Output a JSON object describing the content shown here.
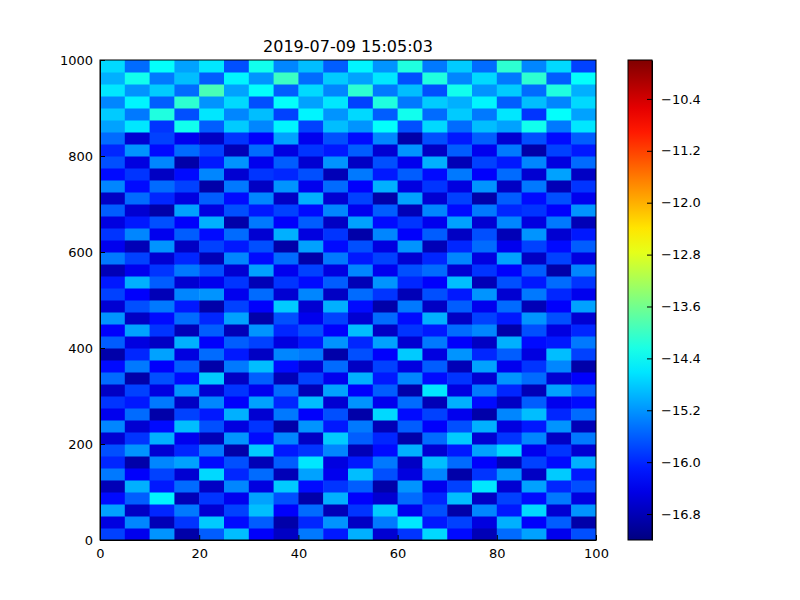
{
  "chart_data": {
    "type": "heatmap",
    "title": "2019-07-09 15:05:03",
    "xlim": [
      0,
      100
    ],
    "xticks": [
      0,
      20,
      40,
      60,
      80,
      100
    ],
    "ylim": [
      0,
      1000
    ],
    "yticks": [
      0,
      200,
      400,
      600,
      800,
      1000
    ],
    "colorbar": {
      "range": [
        -17.2,
        -9.8
      ],
      "ticks": [
        {
          "value": -16.8,
          "label": "−16.8"
        },
        {
          "value": -16.0,
          "label": "−16.0"
        },
        {
          "value": -15.2,
          "label": "−15.2"
        },
        {
          "value": -14.4,
          "label": "−14.4"
        },
        {
          "value": -13.6,
          "label": "−13.6"
        },
        {
          "value": -12.8,
          "label": "−12.8"
        },
        {
          "value": -12.0,
          "label": "−12.0"
        },
        {
          "value": -11.2,
          "label": "−11.2"
        },
        {
          "value": -10.4,
          "label": "−10.4"
        }
      ]
    },
    "cells": [
      [
        -15.8,
        -16.4,
        -15.2,
        -16.9,
        -15.6,
        -14.9,
        -16.3,
        -16.7,
        -15.4,
        -16.1,
        -15.0,
        -16.6,
        -15.9,
        -14.7,
        -16.2,
        -16.8,
        -15.5,
        -15.1,
        -16.4,
        -15.7
      ],
      [
        -16.5,
        -15.3,
        -16.8,
        -15.9,
        -14.8,
        -16.2,
        -15.6,
        -16.9,
        -16.0,
        -15.2,
        -16.7,
        -15.4,
        -14.6,
        -16.1,
        -15.8,
        -16.5,
        -15.0,
        -16.3,
        -15.6,
        -16.9
      ],
      [
        -15.1,
        -16.7,
        -16.0,
        -15.4,
        -16.6,
        -15.8,
        -14.9,
        -16.3,
        -15.5,
        -16.8,
        -15.9,
        -14.8,
        -16.4,
        -15.7,
        -16.9,
        -15.3,
        -16.1,
        -14.7,
        -16.6,
        -15.2
      ],
      [
        -16.2,
        -15.6,
        -14.5,
        -16.8,
        -15.9,
        -16.4,
        -15.1,
        -15.7,
        -16.9,
        -15.0,
        -16.3,
        -16.6,
        -15.5,
        -16.0,
        -14.9,
        -16.7,
        -15.8,
        -16.2,
        -15.4,
        -16.5
      ],
      [
        -16.8,
        -15.0,
        -16.1,
        -15.5,
        -16.7,
        -15.3,
        -16.5,
        -14.8,
        -16.2,
        -15.9,
        -15.6,
        -16.9,
        -15.2,
        -16.4,
        -15.8,
        -14.6,
        -16.6,
        -15.1,
        -16.0,
        -15.7
      ],
      [
        -15.4,
        -16.3,
        -15.8,
        -16.6,
        -14.7,
        -16.0,
        -15.5,
        -16.8,
        -15.1,
        -16.4,
        -14.9,
        -15.7,
        -16.5,
        -15.3,
        -16.9,
        -15.9,
        -15.2,
        -16.7,
        -14.8,
        -16.1
      ],
      [
        -16.0,
        -16.9,
        -15.3,
        -15.1,
        -16.2,
        -15.7,
        -16.8,
        -15.6,
        -14.6,
        -16.5,
        -16.1,
        -15.4,
        -16.7,
        -14.9,
        -15.5,
        -16.3,
        -16.8,
        -15.8,
        -16.2,
        -15.0
      ],
      [
        -15.7,
        -15.2,
        -16.6,
        -16.0,
        -15.4,
        -16.9,
        -14.8,
        -16.1,
        -15.9,
        -15.3,
        -16.8,
        -16.2,
        -15.0,
        -16.6,
        -16.1,
        -15.1,
        -14.7,
        -16.4,
        -15.9,
        -16.6
      ],
      [
        -16.6,
        -15.9,
        -15.0,
        -16.4,
        -16.8,
        -15.2,
        -16.2,
        -15.3,
        -16.7,
        -14.8,
        -15.6,
        -16.0,
        -16.9,
        -15.5,
        -14.8,
        -16.6,
        -15.9,
        -15.3,
        -16.7,
        -15.4
      ],
      [
        -15.3,
        -16.6,
        -16.2,
        -14.9,
        -15.7,
        -16.5,
        -15.9,
        -16.9,
        -15.2,
        -16.1,
        -15.4,
        -16.8,
        -15.6,
        -16.3,
        -15.7,
        -15.0,
        -16.5,
        -16.1,
        -15.2,
        -16.8
      ],
      [
        -16.4,
        -15.5,
        -16.9,
        -15.8,
        -16.1,
        -15.0,
        -16.6,
        -15.4,
        -16.3,
        -15.7,
        -16.9,
        -14.7,
        -16.2,
        -15.8,
        -16.4,
        -16.9,
        -15.3,
        -14.9,
        -16.0,
        -15.5
      ],
      [
        -15.9,
        -16.1,
        -15.4,
        -16.7,
        -15.3,
        -16.3,
        -15.1,
        -16.0,
        -14.9,
        -16.6,
        -15.2,
        -16.4,
        -15.5,
        -16.8,
        -15.0,
        -16.2,
        -16.7,
        -15.6,
        -16.4,
        -16.2
      ],
      [
        -16.7,
        -15.8,
        -16.5,
        -15.2,
        -16.6,
        -15.9,
        -16.4,
        -15.5,
        -16.8,
        -15.1,
        -16.3,
        -15.6,
        -16.9,
        -14.6,
        -16.5,
        -15.4,
        -16.0,
        -16.8,
        -15.1,
        -15.6
      ],
      [
        -15.5,
        -16.9,
        -15.7,
        -16.2,
        -14.8,
        -16.7,
        -15.6,
        -16.8,
        -15.8,
        -16.4,
        -15.0,
        -16.1,
        -15.3,
        -16.2,
        -15.9,
        -16.6,
        -15.2,
        -15.5,
        -16.6,
        -16.3
      ],
      [
        -16.2,
        -15.4,
        -16.3,
        -15.6,
        -16.9,
        -15.4,
        -14.9,
        -16.2,
        -16.6,
        -15.5,
        -16.7,
        -15.8,
        -16.5,
        -15.6,
        -16.8,
        -15.1,
        -16.4,
        -15.9,
        -15.3,
        -16.9
      ],
      [
        -16.9,
        -16.0,
        -15.1,
        -16.5,
        -15.5,
        -16.1,
        -16.7,
        -15.3,
        -15.4,
        -16.9,
        -15.7,
        -16.3,
        -14.8,
        -16.5,
        -15.2,
        -16.0,
        -15.6,
        -16.5,
        -14.9,
        -15.8
      ],
      [
        -15.6,
        -16.5,
        -16.7,
        -15.0,
        -16.3,
        -15.6,
        -15.8,
        -16.5,
        -16.1,
        -15.2,
        -16.0,
        -15.1,
        -16.6,
        -15.4,
        -16.3,
        -16.7,
        -15.0,
        -16.2,
        -16.1,
        -15.4
      ],
      [
        -16.3,
        -15.1,
        -15.9,
        -16.8,
        -15.6,
        -16.8,
        -15.2,
        -16.0,
        -15.7,
        -16.3,
        -14.9,
        -16.7,
        -15.9,
        -16.1,
        -15.5,
        -15.3,
        -16.9,
        -15.7,
        -16.5,
        -16.0
      ],
      [
        -15.2,
        -16.7,
        -16.2,
        -15.5,
        -16.0,
        -15.1,
        -16.9,
        -15.7,
        -16.4,
        -15.8,
        -16.6,
        -15.5,
        -16.2,
        -15.0,
        -16.7,
        -15.8,
        -16.1,
        -15.2,
        -15.7,
        -16.6
      ],
      [
        -16.6,
        -15.7,
        -15.4,
        -16.1,
        -16.9,
        -15.8,
        -16.3,
        -14.8,
        -16.6,
        -15.0,
        -16.2,
        -16.9,
        -15.4,
        -16.7,
        -15.6,
        -16.4,
        -15.5,
        -16.8,
        -16.3,
        -15.1
      ],
      [
        -15.8,
        -16.3,
        -16.8,
        -15.3,
        -15.2,
        -16.4,
        -15.5,
        -16.6,
        -15.3,
        -16.7,
        -15.5,
        -15.9,
        -16.8,
        -15.7,
        -16.1,
        -15.2,
        -16.6,
        -15.4,
        -16.0,
        -16.4
      ],
      [
        -16.1,
        -15.0,
        -15.6,
        -16.6,
        -16.4,
        -15.9,
        -16.8,
        -15.9,
        -16.2,
        -15.6,
        -16.8,
        -15.2,
        -16.0,
        -16.3,
        -14.9,
        -16.8,
        -15.7,
        -16.1,
        -15.5,
        -15.9
      ],
      [
        -16.8,
        -16.4,
        -15.9,
        -15.4,
        -15.7,
        -16.6,
        -15.1,
        -16.4,
        -15.8,
        -16.5,
        -15.3,
        -16.4,
        -15.7,
        -15.5,
        -16.6,
        -15.9,
        -16.3,
        -15.6,
        -16.9,
        -15.3
      ],
      [
        -15.4,
        -15.8,
        -16.6,
        -16.0,
        -16.8,
        -15.3,
        -16.2,
        -15.5,
        -16.9,
        -15.4,
        -16.1,
        -15.8,
        -16.6,
        -16.0,
        -15.3,
        -16.5,
        -15.1,
        -16.7,
        -15.8,
        -16.5
      ],
      [
        -16.4,
        -16.8,
        -15.2,
        -16.7,
        -15.8,
        -16.1,
        -15.7,
        -16.9,
        -15.1,
        -16.2,
        -15.7,
        -16.5,
        -15.2,
        -16.8,
        -16.0,
        -15.5,
        -16.4,
        -15.8,
        -16.2,
        -15.6
      ],
      [
        -15.9,
        -15.3,
        -16.4,
        -15.6,
        -16.2,
        -15.5,
        -16.6,
        -15.0,
        -16.5,
        -15.9,
        -16.9,
        -15.3,
        -16.3,
        -15.6,
        -16.7,
        -15.7,
        -16.8,
        -15.2,
        -16.6,
        -16.1
      ],
      [
        -16.5,
        -16.1,
        -15.7,
        -16.3,
        -15.0,
        -16.9,
        -15.4,
        -16.3,
        -15.6,
        -16.7,
        -15.1,
        -16.2,
        -15.9,
        -16.4,
        -15.1,
        -16.6,
        -15.3,
        -16.5,
        -15.4,
        -16.8
      ],
      [
        -15.6,
        -16.6,
        -16.9,
        -15.1,
        -16.5,
        -15.7,
        -16.1,
        -15.8,
        -16.2,
        -15.3,
        -16.4,
        -15.6,
        -16.8,
        -15.3,
        -16.2,
        -15.4,
        -16.0,
        -15.9,
        -16.3,
        -15.2
      ],
      [
        -16.7,
        -15.5,
        -16.0,
        -16.5,
        -15.6,
        -16.2,
        -15.3,
        -16.7,
        -15.0,
        -16.6,
        -15.8,
        -16.9,
        -15.1,
        -16.6,
        -15.8,
        -16.9,
        -15.6,
        -16.2,
        -15.7,
        -16.4
      ],
      [
        -15.3,
        -16.2,
        -15.5,
        -15.8,
        -16.9,
        -15.4,
        -16.7,
        -15.2,
        -16.4,
        -15.5,
        -16.3,
        -15.0,
        -16.5,
        -15.9,
        -16.5,
        -15.2,
        -16.7,
        -15.4,
        -16.8,
        -15.9
      ],
      [
        -16.2,
        -15.9,
        -16.7,
        -16.2,
        -15.3,
        -16.6,
        -15.9,
        -16.0,
        -15.7,
        -16.8,
        -15.4,
        -16.1,
        -15.6,
        -16.2,
        -15.4,
        -16.3,
        -15.5,
        -16.6,
        -15.1,
        -16.7
      ],
      [
        -15.7,
        -16.5,
        -15.3,
        -16.9,
        -16.1,
        -15.2,
        -16.4,
        -15.6,
        -16.6,
        -15.2,
        -16.7,
        -15.7,
        -16.4,
        -15.0,
        -16.8,
        -15.8,
        -16.1,
        -15.3,
        -16.5,
        -15.5
      ],
      [
        -16.0,
        -15.2,
        -16.2,
        -15.5,
        -15.8,
        -16.8,
        -15.5,
        -16.5,
        -15.9,
        -16.1,
        -15.6,
        -16.6,
        -15.2,
        -16.7,
        -15.6,
        -16.4,
        -15.4,
        -16.9,
        -15.8,
        -16.1
      ],
      [
        -15.5,
        -16.6,
        -15.8,
        -16.4,
        -16.7,
        -15.9,
        -16.3,
        -15.1,
        -16.4,
        -15.7,
        -16.2,
        -15.3,
        -16.9,
        -15.7,
        -16.1,
        -15.6,
        -16.6,
        -15.7,
        -16.2,
        -15.6
      ],
      [
        -15.1,
        -14.6,
        -15.9,
        -14.3,
        -15.6,
        -14.8,
        -15.3,
        -14.5,
        -15.8,
        -14.9,
        -15.2,
        -14.4,
        -15.7,
        -14.7,
        -15.5,
        -14.9,
        -15.1,
        -14.3,
        -15.4,
        -14.6
      ],
      [
        -14.8,
        -15.4,
        -14.2,
        -15.7,
        -14.6,
        -15.3,
        -14.9,
        -15.8,
        -14.5,
        -15.2,
        -14.7,
        -15.6,
        -14.3,
        -15.5,
        -14.8,
        -15.4,
        -14.6,
        -15.9,
        -14.4,
        -15.1
      ],
      [
        -15.3,
        -14.5,
        -15.6,
        -14.1,
        -15.2,
        -14.7,
        -15.7,
        -14.4,
        -15.1,
        -14.6,
        -15.8,
        -14.2,
        -15.4,
        -14.8,
        -15.0,
        -14.5,
        -15.6,
        -14.9,
        -15.3,
        -14.7
      ],
      [
        -14.6,
        -15.2,
        -14.8,
        -15.5,
        -13.9,
        -15.1,
        -14.4,
        -15.6,
        -14.7,
        -15.3,
        -14.1,
        -15.4,
        -14.9,
        -15.7,
        -14.3,
        -15.2,
        -14.8,
        -15.5,
        -14.2,
        -15.0
      ],
      [
        -15.0,
        -14.3,
        -15.4,
        -14.9,
        -15.6,
        -14.5,
        -15.2,
        -14.0,
        -15.5,
        -14.8,
        -15.1,
        -14.6,
        -15.7,
        -14.2,
        -15.3,
        -14.7,
        -15.4,
        -14.1,
        -15.6,
        -14.4
      ],
      [
        -14.7,
        -15.5,
        -14.4,
        -15.1,
        -14.6,
        -15.7,
        -14.3,
        -15.3,
        -14.9,
        -15.6,
        -14.5,
        -15.2,
        -14.2,
        -15.4,
        -14.8,
        -15.5,
        -14.1,
        -15.3,
        -14.7,
        -15.8
      ]
    ]
  }
}
